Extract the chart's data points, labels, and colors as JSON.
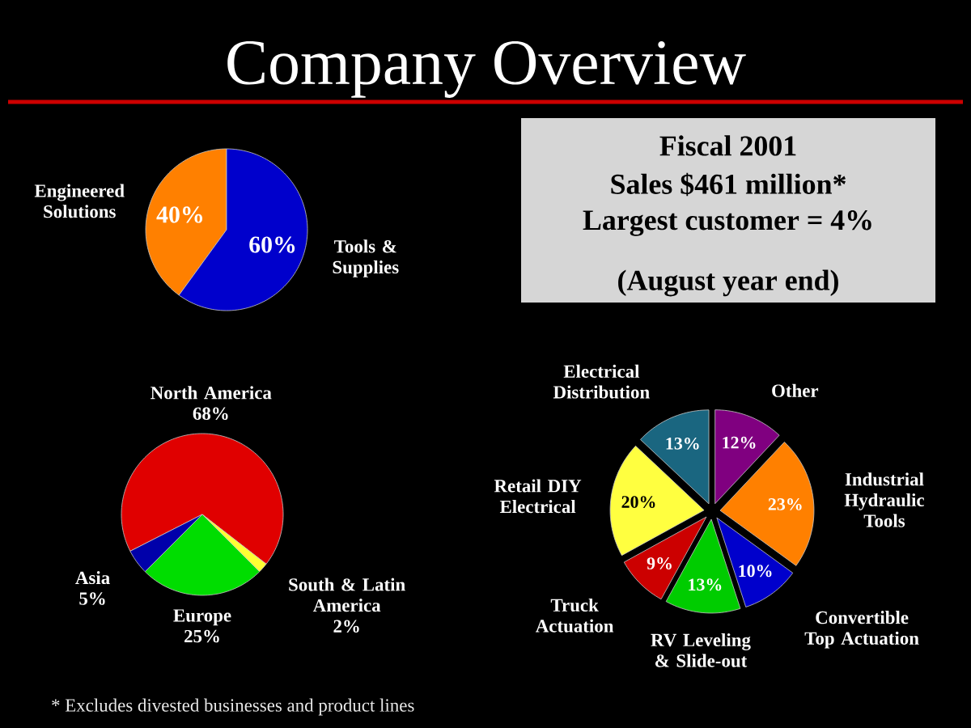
{
  "chart_data": [
    {
      "type": "pie",
      "title": "Company Overview",
      "categories": [
        "Engineered Solutions",
        "Tools & Supplies"
      ],
      "values": [
        40,
        60
      ],
      "colors": [
        "#ff8000",
        "#0000cc"
      ],
      "value_labels": [
        "40%",
        "60%"
      ]
    },
    {
      "type": "other",
      "annotations": [
        "Fiscal 2001",
        "Sales $461 million*",
        "Largest customer = 4%",
        "(August year end)"
      ]
    },
    {
      "type": "pie",
      "categories": [
        "North America",
        "South & Latin America",
        "Europe",
        "Asia"
      ],
      "values": [
        68,
        2,
        25,
        5
      ],
      "colors": [
        "#e00000",
        "#ffff33",
        "#00dd00",
        "#0000aa"
      ],
      "value_labels": [
        "68%",
        "2%",
        "25%",
        "5%"
      ],
      "annotations": [
        "* Excludes divested businesses and product lines"
      ]
    },
    {
      "type": "pie",
      "categories": [
        "Electrical Distribution",
        "Other",
        "Industrial Hydraulic Tools",
        "Convertible Top Actuation",
        "RV Leveling & Slide-out",
        "Truck Actuation",
        "Retail DIY Electrical"
      ],
      "values": [
        13,
        12,
        23,
        10,
        13,
        9,
        20
      ],
      "colors": [
        "#1a6680",
        "#800080",
        "#ff8000",
        "#0000cc",
        "#00cc00",
        "#cc0000",
        "#ffff40"
      ],
      "value_labels": [
        "13%",
        "12%",
        "23%",
        "10%",
        "13%",
        "9%",
        "20%"
      ]
    }
  ]
}
